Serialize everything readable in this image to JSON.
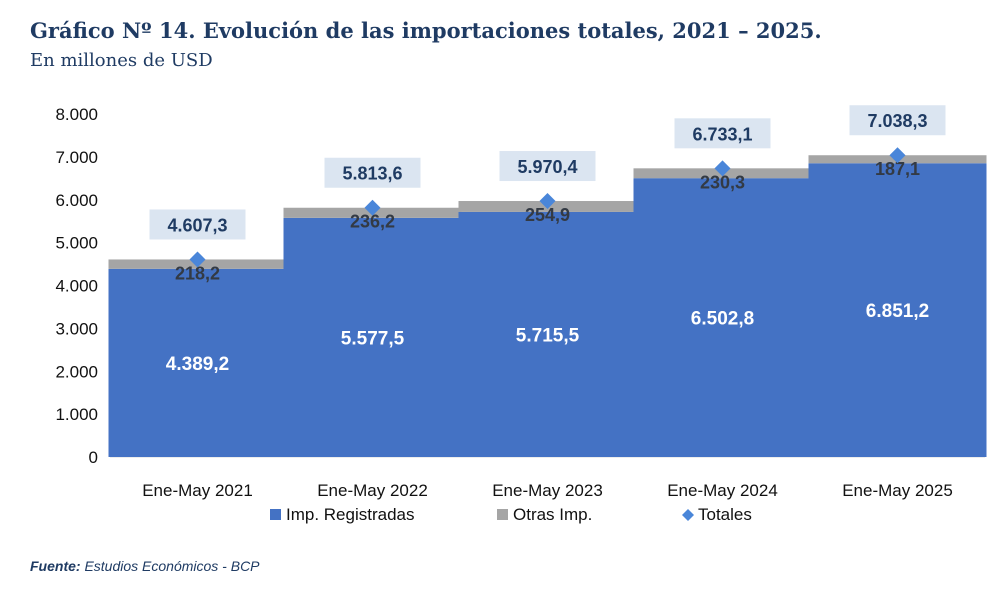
{
  "header": {
    "title": "Gráfico Nº 14. Evolución de las importaciones totales, 2021 – 2025.",
    "subtitle": "En millones de USD"
  },
  "footer": {
    "source_label": "Fuente:",
    "source_text": "Estudios Económicos - BCP"
  },
  "chart_data": {
    "type": "bar",
    "stacked": true,
    "categories": [
      "Ene-May 2021",
      "Ene-May 2022",
      "Ene-May 2023",
      "Ene-May 2024",
      "Ene-May 2025"
    ],
    "series": [
      {
        "name": "Imp. Registradas",
        "values": [
          4389.2,
          5577.5,
          5715.5,
          6502.8,
          6851.2
        ],
        "labels": [
          "4.389,2",
          "5.577,5",
          "5.715,5",
          "6.502,8",
          "6.851,2"
        ],
        "color": "#4472c4"
      },
      {
        "name": "Otras Imp.",
        "values": [
          218.2,
          236.2,
          254.9,
          230.3,
          187.1
        ],
        "labels": [
          "218,2",
          "236,2",
          "254,9",
          "230,3",
          "187,1"
        ],
        "color": "#a5a5a5"
      },
      {
        "name": "Totales",
        "type": "marker",
        "values": [
          4607.3,
          5813.6,
          5970.4,
          6733.1,
          7038.3
        ],
        "labels": [
          "4.607,3",
          "5.813,6",
          "5.970,4",
          "6.733,1",
          "7.038,3"
        ],
        "color": "#4a86d9"
      }
    ],
    "ylim": [
      0,
      8000
    ],
    "yticks": [
      0,
      1000,
      2000,
      3000,
      4000,
      5000,
      6000,
      7000,
      8000
    ],
    "ytick_labels": [
      "0",
      "1.000",
      "2.000",
      "3.000",
      "4.000",
      "5.000",
      "6.000",
      "7.000",
      "8.000"
    ],
    "grid": false,
    "legend": "bottom",
    "total_label_bg": "#dbe5f1"
  }
}
